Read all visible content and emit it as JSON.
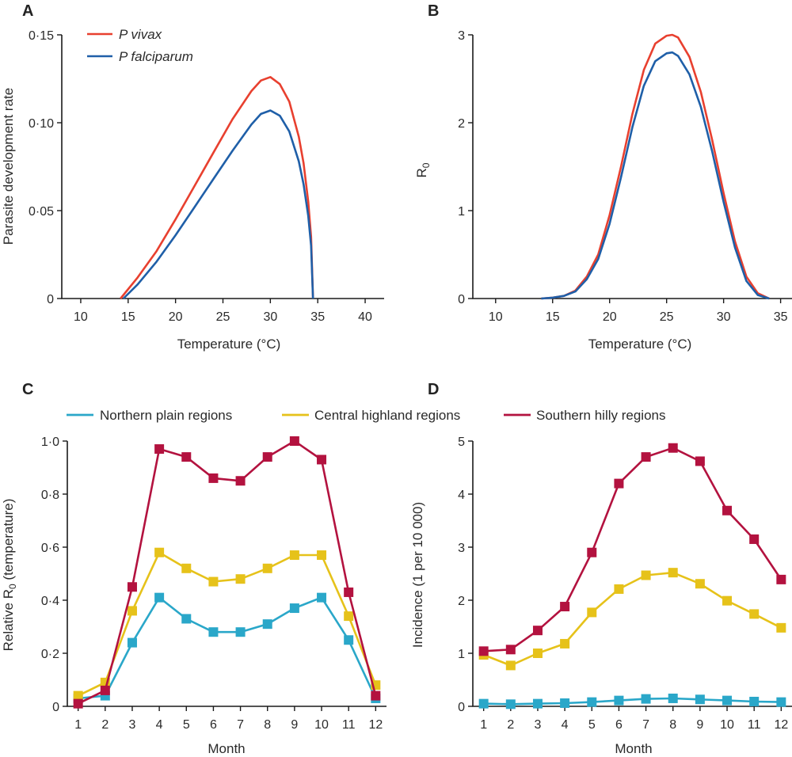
{
  "chart_data": [
    {
      "panel": "A",
      "type": "line",
      "xlabel": "Temperature (°C)",
      "ylabel": "Parasite development rate",
      "xlim": [
        8,
        42
      ],
      "ylim": [
        0,
        0.15
      ],
      "xticks": [
        10,
        15,
        20,
        25,
        30,
        35,
        40
      ],
      "yticks": [
        0,
        0.05,
        0.1,
        0.15
      ],
      "ytick_labels": [
        "0",
        "0·05",
        "0·10",
        "0·15"
      ],
      "legend": "top-left",
      "series": [
        {
          "name": "P vivax",
          "color": "#e8402f",
          "x": [
            14.2,
            16,
            18,
            20,
            22,
            24,
            26,
            28,
            29,
            30,
            31,
            32,
            33,
            33.5,
            34,
            34.3,
            34.5
          ],
          "y": [
            0,
            0.012,
            0.027,
            0.045,
            0.064,
            0.083,
            0.102,
            0.118,
            0.124,
            0.126,
            0.122,
            0.112,
            0.092,
            0.077,
            0.055,
            0.035,
            0
          ]
        },
        {
          "name": "P falciparum",
          "color": "#1f5fa8",
          "x": [
            14.5,
            16,
            18,
            20,
            22,
            24,
            26,
            28,
            29,
            30,
            31,
            32,
            33,
            33.5,
            34,
            34.3,
            34.5
          ],
          "y": [
            0,
            0.008,
            0.021,
            0.036,
            0.052,
            0.068,
            0.084,
            0.099,
            0.105,
            0.107,
            0.104,
            0.095,
            0.078,
            0.065,
            0.047,
            0.03,
            0
          ]
        }
      ]
    },
    {
      "panel": "B",
      "type": "line",
      "xlabel": "Temperature (°C)",
      "ylabel": "R0",
      "xlim": [
        8,
        36
      ],
      "ylim": [
        0,
        3
      ],
      "xticks": [
        10,
        15,
        20,
        25,
        30,
        35
      ],
      "yticks": [
        0,
        1,
        2,
        3
      ],
      "series": [
        {
          "name": "",
          "color": "#e8402f",
          "x": [
            14,
            15,
            16,
            17,
            18,
            19,
            20,
            21,
            22,
            23,
            24,
            25,
            25.5,
            26,
            27,
            28,
            29,
            30,
            31,
            32,
            33,
            34
          ],
          "y": [
            0,
            0.01,
            0.03,
            0.09,
            0.25,
            0.5,
            0.95,
            1.5,
            2.1,
            2.6,
            2.9,
            2.99,
            3.0,
            2.97,
            2.75,
            2.35,
            1.8,
            1.2,
            0.65,
            0.25,
            0.06,
            0
          ]
        },
        {
          "name": "",
          "color": "#1f5fa8",
          "x": [
            14,
            15,
            16,
            17,
            18,
            19,
            20,
            21,
            22,
            23,
            24,
            25,
            25.5,
            26,
            27,
            28,
            29,
            30,
            31,
            32,
            33,
            34
          ],
          "y": [
            0,
            0.01,
            0.03,
            0.08,
            0.22,
            0.45,
            0.85,
            1.38,
            1.95,
            2.42,
            2.7,
            2.79,
            2.8,
            2.76,
            2.55,
            2.18,
            1.67,
            1.1,
            0.58,
            0.2,
            0.04,
            0
          ]
        }
      ]
    },
    {
      "panel": "C",
      "type": "line",
      "xlabel": "Month",
      "ylabel": "Relative R0 (temperature)",
      "xlim": [
        0.6,
        12.4
      ],
      "ylim": [
        0,
        1.0
      ],
      "x": [
        1,
        2,
        3,
        4,
        5,
        6,
        7,
        8,
        9,
        10,
        11,
        12
      ],
      "yticks": [
        0,
        0.2,
        0.4,
        0.6,
        0.8,
        1.0
      ],
      "ytick_labels": [
        "0",
        "0·2",
        "0·4",
        "0·6",
        "0·8",
        "1·0"
      ],
      "legend": "top",
      "series": [
        {
          "name": "Northern plain regions",
          "color": "#2aa7c9",
          "values": [
            0.03,
            0.04,
            0.24,
            0.41,
            0.33,
            0.28,
            0.28,
            0.31,
            0.37,
            0.41,
            0.25,
            0.03
          ]
        },
        {
          "name": "Central highland regions",
          "color": "#e6c21a",
          "values": [
            0.04,
            0.09,
            0.36,
            0.58,
            0.52,
            0.47,
            0.48,
            0.52,
            0.57,
            0.57,
            0.34,
            0.08
          ]
        },
        {
          "name": "Southern hilly regions",
          "color": "#b3123f",
          "values": [
            0.01,
            0.06,
            0.45,
            0.97,
            0.94,
            0.86,
            0.85,
            0.94,
            1.0,
            0.93,
            0.43,
            0.04
          ]
        }
      ]
    },
    {
      "panel": "D",
      "type": "line",
      "xlabel": "Month",
      "ylabel": "Incidence (1 per 10 000)",
      "xlim": [
        0.6,
        12.4
      ],
      "ylim": [
        0,
        5
      ],
      "x": [
        1,
        2,
        3,
        4,
        5,
        6,
        7,
        8,
        9,
        10,
        11,
        12
      ],
      "yticks": [
        0,
        1,
        2,
        3,
        4,
        5
      ],
      "series": [
        {
          "name": "Northern plain regions",
          "color": "#2aa7c9",
          "values": [
            0.05,
            0.04,
            0.05,
            0.06,
            0.08,
            0.11,
            0.14,
            0.15,
            0.13,
            0.11,
            0.09,
            0.08
          ]
        },
        {
          "name": "Central highland regions",
          "color": "#e6c21a",
          "values": [
            0.97,
            0.77,
            1.0,
            1.18,
            1.77,
            2.21,
            2.47,
            2.52,
            2.31,
            1.99,
            1.74,
            1.48
          ]
        },
        {
          "name": "Southern hilly regions",
          "color": "#b3123f",
          "values": [
            1.04,
            1.07,
            1.43,
            1.88,
            2.9,
            4.2,
            4.7,
            4.87,
            4.62,
            3.69,
            3.15,
            2.39
          ]
        }
      ]
    }
  ],
  "panel_letters": {
    "a": "A",
    "b": "B",
    "c": "C",
    "d": "D"
  },
  "labels": {
    "a_ylabel": "Parasite development rate",
    "a_xlabel": "Temperature (°C)",
    "b_ylabel_main": "R",
    "b_ylabel_sub": "0",
    "b_xlabel": "Temperature (°C)",
    "c_ylabel_pre": "Relative R",
    "c_ylabel_sub": "0",
    "c_ylabel_post": " (temperature)",
    "c_xlabel": "Month",
    "d_ylabel": "Incidence (1 per 10 000)",
    "d_xlabel": "Month"
  },
  "legend_a": {
    "vivax": "P vivax",
    "falciparum": "P falciparum"
  },
  "legend_c": {
    "north": "Northern plain regions",
    "central": "Central highland regions",
    "south": "Southern hilly regions"
  }
}
